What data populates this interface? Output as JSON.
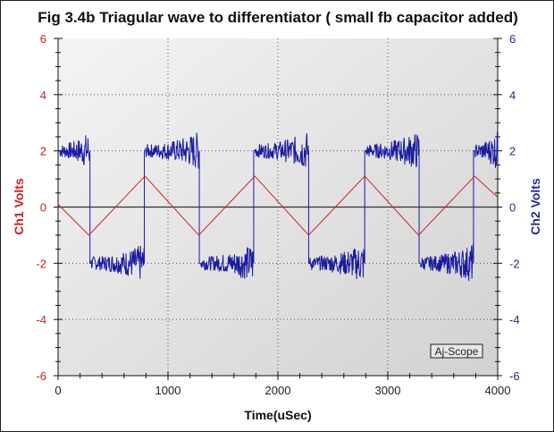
{
  "chart_data": {
    "type": "line",
    "title": "Fig 3.4b Triagular wave to differentiator ( small fb capacitor added)",
    "xlabel": "Time(uSec)",
    "ylabel_left": "Ch1 Volts",
    "ylabel_right": "Ch2 Volts",
    "xlim": [
      0,
      4000
    ],
    "ylim": [
      -6,
      6
    ],
    "y2lim": [
      -6,
      6
    ],
    "xticks": [
      "0",
      "1000",
      "2000",
      "3000",
      "4000"
    ],
    "yticks": [
      "-6",
      "-4",
      "-2",
      "0",
      "2",
      "4",
      "6"
    ],
    "grid": true,
    "watermark": "Aj-Scope",
    "colors": {
      "ch1": "#cc2222",
      "ch2": "#1a1aa0",
      "left_axis": "#cc2222",
      "right_axis": "#2a2a90"
    },
    "series": [
      {
        "name": "Ch1",
        "axis": "left",
        "x": [
          0,
          280,
          790,
          1280,
          1790,
          2280,
          2790,
          3280,
          3790,
          4000
        ],
        "y": [
          0.1,
          -1,
          1.1,
          -1,
          1.1,
          -1,
          1.1,
          -1,
          1.1,
          0.35
        ]
      },
      {
        "name": "Ch2",
        "axis": "right",
        "type": "square",
        "levels": [
          2,
          -2
        ],
        "noise_amplitude": 0.4,
        "transitions": [
          0,
          290,
          785,
          1285,
          1780,
          2280,
          2790,
          3285,
          3780
        ],
        "start_level": 2
      }
    ]
  }
}
